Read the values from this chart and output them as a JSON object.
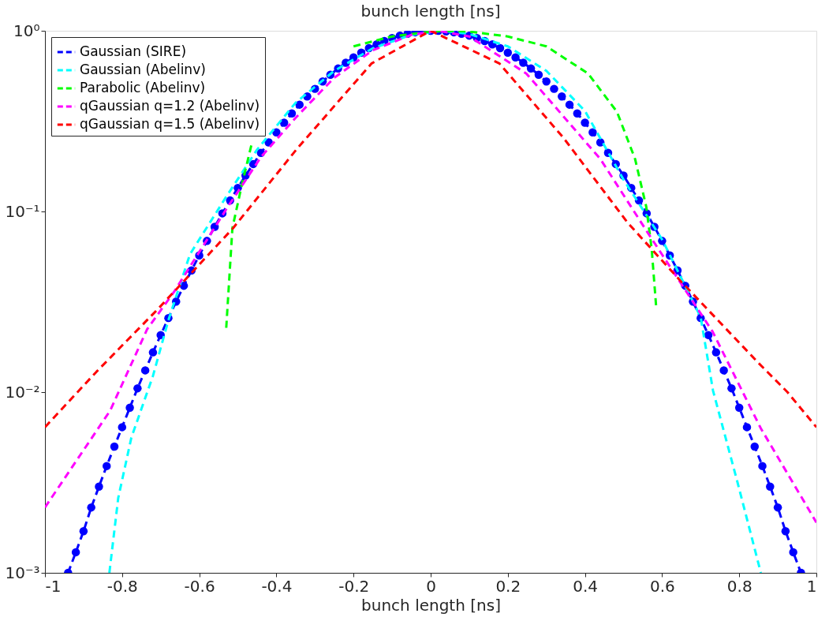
{
  "chart_data": {
    "type": "line",
    "title": "bunch length [ns]",
    "xlabel": "bunch length [ns]",
    "xlim": [
      -1,
      1
    ],
    "xticks": [
      -1,
      -0.8,
      -0.6,
      -0.4,
      -0.2,
      0,
      0.2,
      0.4,
      0.6,
      0.8,
      1
    ],
    "ylim": [
      0.001,
      1
    ],
    "yticks": [
      {
        "value": 0.001,
        "label": "10⁻³"
      },
      {
        "value": 0.01,
        "label": "10⁻²"
      },
      {
        "value": 0.1,
        "label": "10⁻¹"
      },
      {
        "value": 1,
        "label": "10⁰"
      }
    ],
    "log": "y",
    "grid": false,
    "legend": "top left",
    "line_style": "dashed",
    "series": [
      {
        "name": "Gaussian (SIRE)",
        "color": "#0000ff",
        "marker": "circle",
        "x": [
          -0.94,
          -0.92,
          -0.9,
          -0.88,
          -0.86,
          -0.84,
          -0.82,
          -0.8,
          -0.78,
          -0.76,
          -0.74,
          -0.72,
          -0.7,
          -0.68,
          -0.66,
          -0.64,
          -0.62,
          -0.6,
          -0.58,
          -0.56,
          -0.54,
          -0.52,
          -0.5,
          -0.48,
          -0.46,
          -0.44,
          -0.42,
          -0.4,
          -0.38,
          -0.36,
          -0.34,
          -0.32,
          -0.3,
          -0.28,
          -0.26,
          -0.24,
          -0.22,
          -0.2,
          -0.18,
          -0.16,
          -0.14,
          -0.12,
          -0.1,
          -0.08,
          -0.06,
          -0.04,
          -0.02,
          0,
          0.02,
          0.04,
          0.06,
          0.08,
          0.1,
          0.12,
          0.14,
          0.16,
          0.18,
          0.2,
          0.22,
          0.24,
          0.26,
          0.28,
          0.3,
          0.32,
          0.34,
          0.36,
          0.38,
          0.4,
          0.42,
          0.44,
          0.46,
          0.48,
          0.5,
          0.52,
          0.54,
          0.56,
          0.58,
          0.6,
          0.62,
          0.64,
          0.66,
          0.68,
          0.7,
          0.72,
          0.74,
          0.76,
          0.78,
          0.8,
          0.82,
          0.84,
          0.86,
          0.88,
          0.9,
          0.92,
          0.94,
          0.96
        ],
        "values": [
          0.001,
          0.0013,
          0.0017,
          0.0023,
          0.003,
          0.0039,
          0.005,
          0.0064,
          0.0082,
          0.0105,
          0.0132,
          0.0166,
          0.0207,
          0.0257,
          0.0317,
          0.0388,
          0.0472,
          0.0571,
          0.0687,
          0.0822,
          0.0976,
          0.115,
          0.135,
          0.158,
          0.183,
          0.211,
          0.241,
          0.274,
          0.31,
          0.349,
          0.39,
          0.433,
          0.477,
          0.524,
          0.571,
          0.618,
          0.666,
          0.712,
          0.757,
          0.801,
          0.841,
          0.878,
          0.911,
          0.94,
          0.963,
          0.981,
          0.993,
          0.999,
          0.999,
          0.993,
          0.981,
          0.963,
          0.94,
          0.911,
          0.878,
          0.841,
          0.801,
          0.757,
          0.712,
          0.666,
          0.618,
          0.571,
          0.524,
          0.477,
          0.433,
          0.39,
          0.349,
          0.31,
          0.274,
          0.241,
          0.211,
          0.183,
          0.158,
          0.135,
          0.115,
          0.0976,
          0.0822,
          0.0687,
          0.0571,
          0.0472,
          0.0388,
          0.0317,
          0.0257,
          0.0207,
          0.0166,
          0.0132,
          0.0105,
          0.0082,
          0.0064,
          0.005,
          0.0039,
          0.003,
          0.0023,
          0.0017,
          0.0013,
          0.001
        ]
      },
      {
        "name": "Gaussian (Abelinv)",
        "color": "#00ffff",
        "x": [
          -0.833,
          -0.81,
          -0.776,
          -0.72,
          -0.68,
          -0.624,
          -0.534,
          -0.45,
          -0.35,
          -0.25,
          -0.15,
          -0.05,
          0.03,
          0.1,
          0.2,
          0.3,
          0.4,
          0.5,
          0.6,
          0.7,
          0.732,
          0.795,
          0.856
        ],
        "values": [
          0.001,
          0.0026,
          0.0056,
          0.0123,
          0.025,
          0.058,
          0.117,
          0.22,
          0.4,
          0.6,
          0.8,
          0.95,
          1.0,
          0.96,
          0.82,
          0.6,
          0.36,
          0.15,
          0.07,
          0.026,
          0.0102,
          0.0032,
          0.001
        ]
      },
      {
        "name": "Parabolic (Abelinv)",
        "color": "#00ff00",
        "x": [
          -0.53,
          -0.514,
          -0.49,
          -0.465,
          -0.44,
          -0.4,
          -0.3,
          -0.2,
          -0.1,
          0,
          0.05,
          0.1,
          0.2,
          0.3,
          0.408,
          0.483,
          0.53,
          0.559,
          0.573,
          0.585
        ],
        "values": [
          0.0227,
          0.081,
          0.139,
          0.232,
          null,
          null,
          null,
          0.82,
          0.93,
          0.99,
          1.0,
          0.99,
          0.93,
          0.82,
          0.58,
          0.356,
          0.195,
          0.106,
          0.062,
          0.029
        ]
      },
      {
        "name": "qGaussian q=1.2 (Abelinv)",
        "color": "#ff00ff",
        "x": [
          -1,
          -0.831,
          -0.735,
          -0.665,
          -0.526,
          -0.44,
          -0.35,
          -0.25,
          -0.15,
          -0.05,
          0.02,
          0.1,
          0.248,
          0.44,
          0.565,
          0.731,
          0.856,
          1
        ],
        "values": [
          0.0023,
          0.0079,
          0.0223,
          0.036,
          0.106,
          0.2,
          0.33,
          0.55,
          0.78,
          0.95,
          1.0,
          0.93,
          0.58,
          0.195,
          0.075,
          0.0216,
          0.0063,
          0.0019
        ]
      },
      {
        "name": "qGaussian q=1.5 (Abelinv)",
        "color": "#ff0000",
        "x": [
          -1,
          -0.866,
          -0.706,
          -0.512,
          -0.346,
          -0.153,
          0,
          0.178,
          0.344,
          0.51,
          0.649,
          0.85,
          0.925,
          1
        ],
        "values": [
          0.0064,
          0.013,
          0.029,
          0.081,
          0.223,
          0.66,
          1.0,
          0.66,
          0.256,
          0.087,
          0.041,
          0.0145,
          0.01,
          0.0064
        ]
      }
    ]
  }
}
